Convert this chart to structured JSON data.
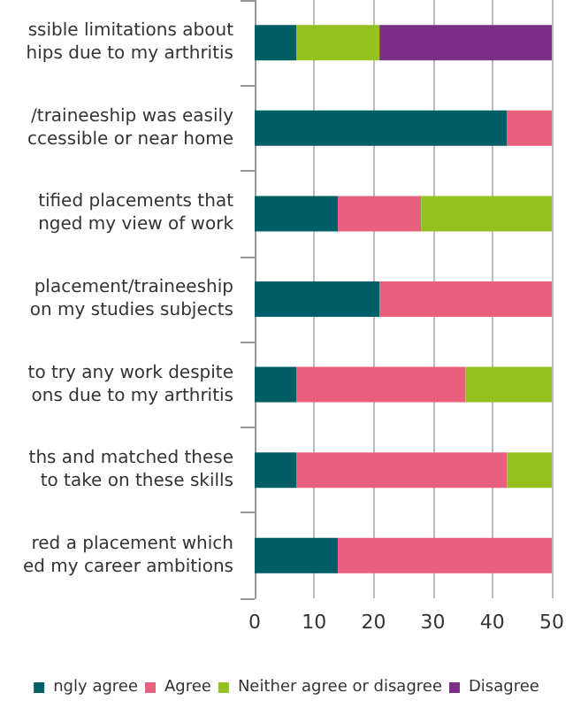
{
  "chart_data": {
    "type": "bar",
    "orientation": "horizontal",
    "stacked": true,
    "categories": [
      "ssible limitations about\nhips due to my arthritis",
      "/traineeship was easily\nccessible or near home",
      "tified placements that\nnged my view of work",
      "placement/traineeship\non my studies subjects",
      "to try any work despite\nons due to my arthritis",
      "ths and matched these\nto take on these skills",
      "red a placement which\ned my career ambitions"
    ],
    "series": [
      {
        "name": "ngly agree",
        "color": "#005f66",
        "values": [
          7,
          42.5,
          14,
          21,
          7,
          7,
          14
        ]
      },
      {
        "name": "Agree",
        "color": "#e8607d",
        "values": [
          0,
          7.5,
          14,
          29,
          28.5,
          35.5,
          36
        ]
      },
      {
        "name": "Neither agree or disagree",
        "color": "#95c11f",
        "values": [
          14,
          0,
          22,
          0,
          14.5,
          7.5,
          0
        ]
      },
      {
        "name": "Disagree",
        "color": "#7b2f86",
        "values": [
          29,
          0,
          0,
          0,
          0,
          0,
          0
        ]
      }
    ],
    "xlim": [
      0,
      50
    ],
    "xticks": [
      0,
      10,
      20,
      30,
      40,
      50
    ],
    "grid": "x",
    "legend": "bottom"
  }
}
